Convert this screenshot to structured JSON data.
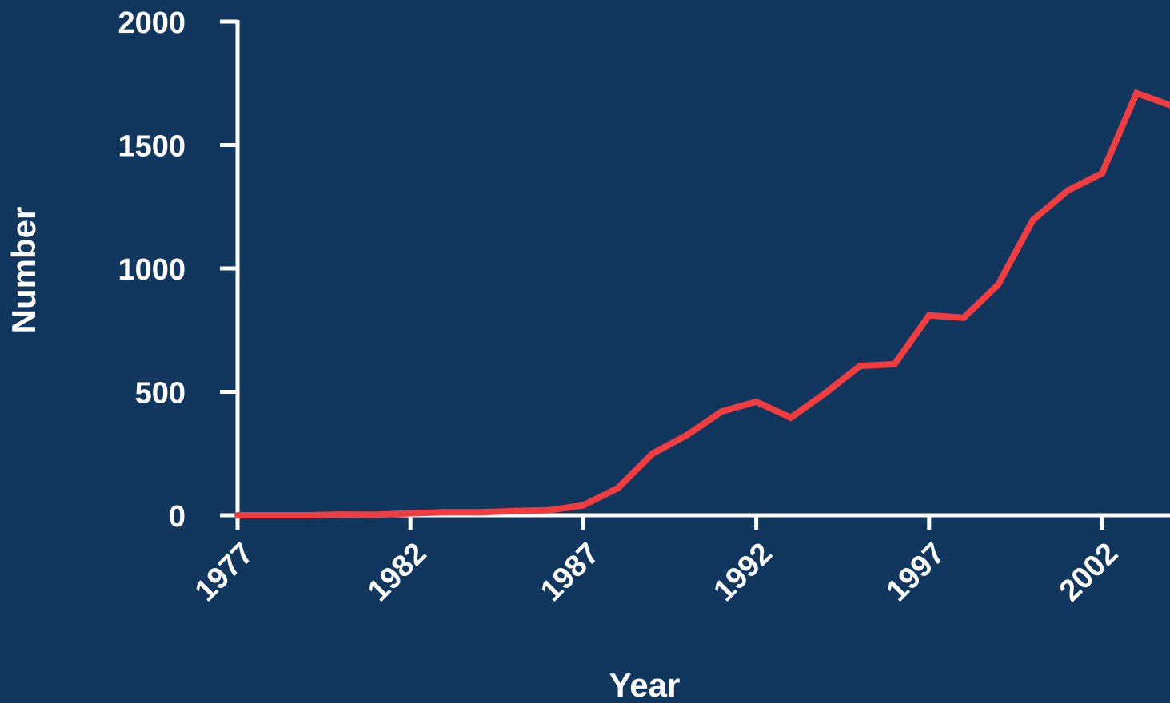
{
  "colors": {
    "background": "#11375f",
    "axis": "#ffffff",
    "series": "#f23d40"
  },
  "chart_data": {
    "type": "line",
    "title": "",
    "xlabel": "Year",
    "ylabel": "Number",
    "xlim": [
      1977,
      2004
    ],
    "ylim": [
      0,
      2000
    ],
    "x_ticks": [
      "1977",
      "1982",
      "1987",
      "1992",
      "1997",
      "2002"
    ],
    "y_ticks": [
      "0",
      "500",
      "1000",
      "1500",
      "2000"
    ],
    "grid": false,
    "legend": "none",
    "x": [
      1977,
      1978,
      1979,
      1980,
      1981,
      1982,
      1983,
      1984,
      1985,
      1986,
      1987,
      1988,
      1989,
      1990,
      1991,
      1992,
      1993,
      1994,
      1995,
      1996,
      1997,
      1998,
      1999,
      2000,
      2001,
      2002,
      2003,
      2004
    ],
    "series": [
      {
        "values": [
          0,
          0,
          0,
          3,
          2,
          8,
          12,
          12,
          17,
          20,
          40,
          110,
          250,
          325,
          420,
          460,
          395,
          495,
          605,
          612,
          810,
          800,
          935,
          1195,
          1315,
          1385,
          1710,
          1660
        ]
      }
    ]
  }
}
